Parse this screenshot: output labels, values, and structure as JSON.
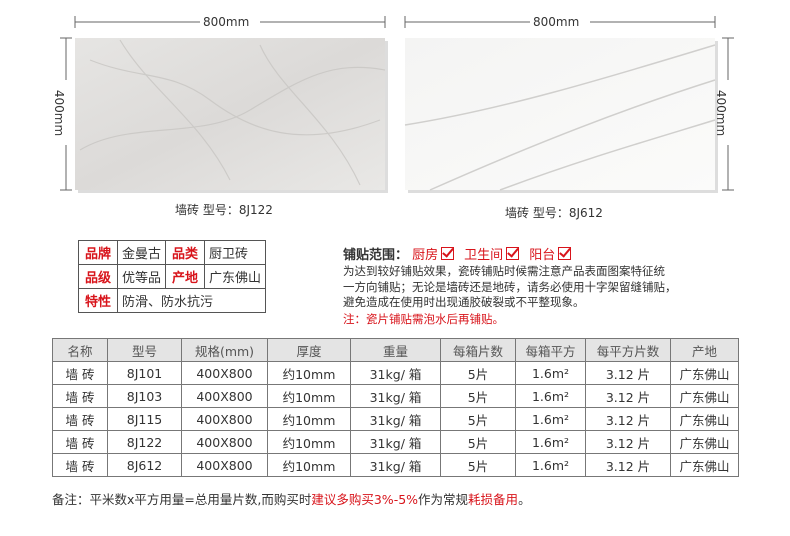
{
  "tiles": [
    {
      "width_label": "800mm",
      "height_label": "400mm",
      "caption": "墙砖  型号：8J122"
    },
    {
      "width_label": "800mm",
      "height_label": "400mm",
      "caption": "墙砖  型号：8J612"
    }
  ],
  "info": {
    "rows": [
      [
        {
          "label": "品牌",
          "value": "金曼古"
        },
        {
          "label": "品类",
          "value": "厨卫砖"
        }
      ],
      [
        {
          "label": "品级",
          "value": "优等品"
        },
        {
          "label": "产地",
          "value": "广东佛山"
        }
      ],
      [
        {
          "label": "特性",
          "value": "防滑、防水抗污"
        }
      ]
    ]
  },
  "paving": {
    "title": "铺贴范围：",
    "options": [
      "厨房",
      "卫生间",
      "阳台"
    ],
    "lines": [
      "为达到较好铺贴效果，瓷砖铺贴时候需注意产品表面图案特征统",
      "一方向铺贴；无论是墙砖还是地砖，请务必使用十字架留缝铺贴，",
      "避免造成在使用时出现通胶破裂或不平整现象。"
    ],
    "note": "注：瓷片铺贴需泡水后再铺贴。"
  },
  "table": {
    "header": [
      "名称",
      "型号",
      "规格(mm)",
      "厚度",
      "重量",
      "每箱片数",
      "每箱平方",
      "每平方片数",
      "产地"
    ],
    "rows": [
      [
        "墙 砖",
        "8J101",
        "400X800",
        "约10mm",
        "31kg/ 箱",
        "5片",
        "1.6m²",
        "3.12 片",
        "广东佛山"
      ],
      [
        "墙 砖",
        "8J103",
        "400X800",
        "约10mm",
        "31kg/ 箱",
        "5片",
        "1.6m²",
        "3.12 片",
        "广东佛山"
      ],
      [
        "墙 砖",
        "8J115",
        "400X800",
        "约10mm",
        "31kg/ 箱",
        "5片",
        "1.6m²",
        "3.12 片",
        "广东佛山"
      ],
      [
        "墙 砖",
        "8J122",
        "400X800",
        "约10mm",
        "31kg/ 箱",
        "5片",
        "1.6m²",
        "3.12 片",
        "广东佛山"
      ],
      [
        "墙 砖",
        "8J612",
        "400X800",
        "约10mm",
        "31kg/ 箱",
        "5片",
        "1.6m²",
        "3.12 片",
        "广东佛山"
      ]
    ]
  },
  "footer": {
    "segments": [
      {
        "text": "备注：平米数x平方用量=总用量片数,而购买时",
        "red": false
      },
      {
        "text": "建议多购买3%-5%",
        "red": true
      },
      {
        "text": "作为常规",
        "red": false
      },
      {
        "text": "耗损备用",
        "red": true
      },
      {
        "text": "。",
        "red": false
      }
    ]
  }
}
